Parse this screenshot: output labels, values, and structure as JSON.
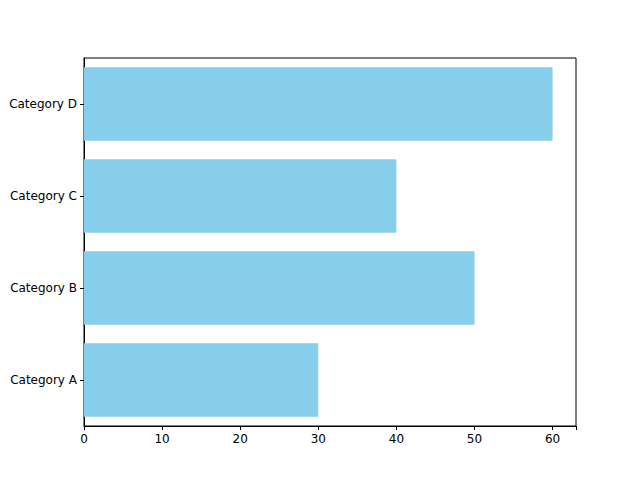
{
  "chart_data": {
    "type": "bar",
    "orientation": "horizontal",
    "categories": [
      "Category A",
      "Category B",
      "Category C",
      "Category D"
    ],
    "values": [
      30,
      50,
      40,
      60
    ],
    "color": "#87ceeb",
    "xlim": [
      0,
      63
    ],
    "xticks": [
      0,
      10,
      20,
      30,
      40,
      50,
      60
    ],
    "grid": false
  }
}
